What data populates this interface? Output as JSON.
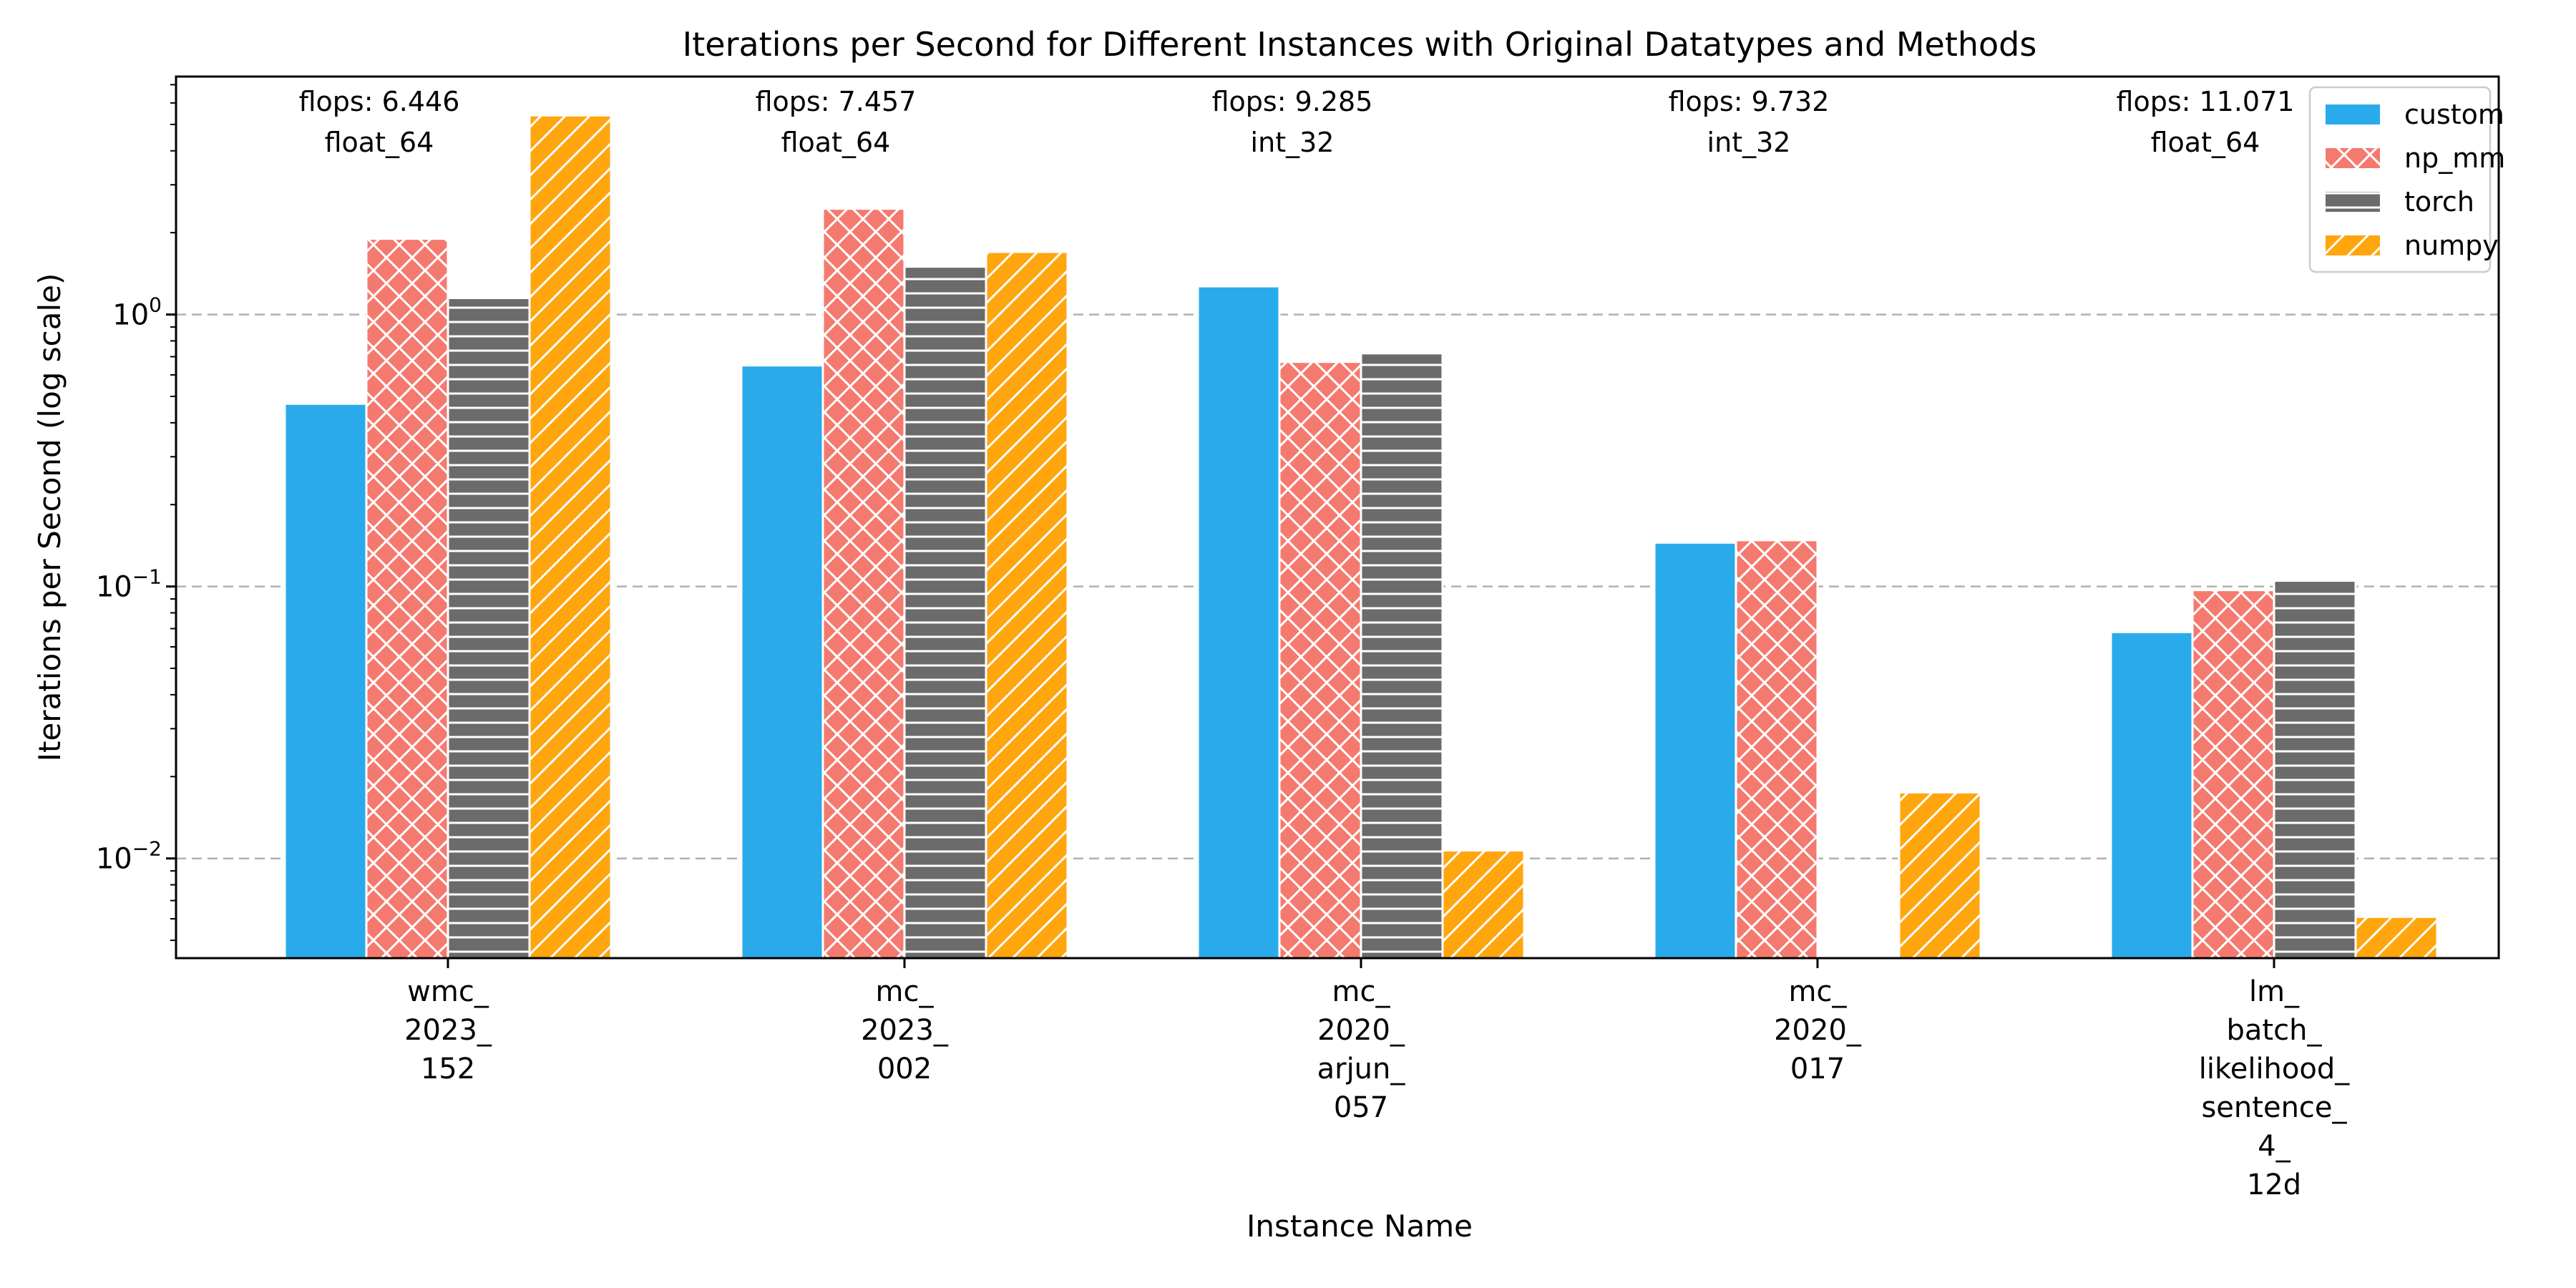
{
  "chart_data": {
    "type": "bar",
    "title": "Iterations per Second for Different Instances with Original Datatypes and Methods",
    "xlabel": "Instance Name",
    "ylabel": "Iterations per Second (log scale)",
    "yscale": "log",
    "ylim": [
      0.0043,
      7.5
    ],
    "yticks": [
      {
        "value": 0.01,
        "base": "10",
        "exp": "−2"
      },
      {
        "value": 0.1,
        "base": "10",
        "exp": "−1"
      },
      {
        "value": 1,
        "base": "10",
        "exp": "0"
      }
    ],
    "grid": "y-major-dashed",
    "legend_position": "top-right",
    "categories": [
      {
        "lines": [
          "wmc_",
          "2023_",
          "152"
        ]
      },
      {
        "lines": [
          "mc_",
          "2023_",
          "002"
        ]
      },
      {
        "lines": [
          "mc_",
          "2020_",
          "arjun_",
          "057"
        ]
      },
      {
        "lines": [
          "mc_",
          "2020_",
          "017"
        ]
      },
      {
        "lines": [
          "lm_",
          "batch_",
          "likelihood_",
          "sentence_",
          "4_",
          "12d"
        ]
      }
    ],
    "annotations": [
      {
        "flops": "flops: 6.446",
        "dtype": "float_64"
      },
      {
        "flops": "flops: 7.457",
        "dtype": "float_64"
      },
      {
        "flops": "flops: 9.285",
        "dtype": "int_32"
      },
      {
        "flops": "flops: 9.732",
        "dtype": "int_32"
      },
      {
        "flops": "flops: 11.071",
        "dtype": "float_64"
      }
    ],
    "series": [
      {
        "name": "custom",
        "color": "#29abeb",
        "hatch": "none",
        "values": [
          0.47,
          0.65,
          1.27,
          0.145,
          0.068
        ]
      },
      {
        "name": "np_mm",
        "color": "#f47a6f",
        "hatch": "cross",
        "values": [
          1.9,
          2.45,
          0.67,
          0.148,
          0.097
        ]
      },
      {
        "name": "torch",
        "color": "#6b6b6b",
        "hatch": "horizontal",
        "values": [
          1.15,
          1.5,
          0.72,
          0.0043,
          0.105
        ]
      },
      {
        "name": "numpy",
        "color": "#ffa50d",
        "hatch": "diagonal",
        "values": [
          5.4,
          1.7,
          0.0107,
          0.0175,
          0.0061
        ]
      }
    ]
  }
}
